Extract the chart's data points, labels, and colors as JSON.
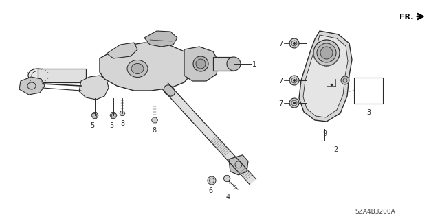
{
  "background_color": "#ffffff",
  "diagram_code": "SZA4B3200A",
  "figsize": [
    6.4,
    3.19
  ],
  "dpi": 100,
  "color_main": "#2a2a2a",
  "color_gray": "#666666",
  "color_light": "#aaaaaa",
  "lw_main": 1.0,
  "lw_thin": 0.6,
  "lw_thick": 1.5
}
